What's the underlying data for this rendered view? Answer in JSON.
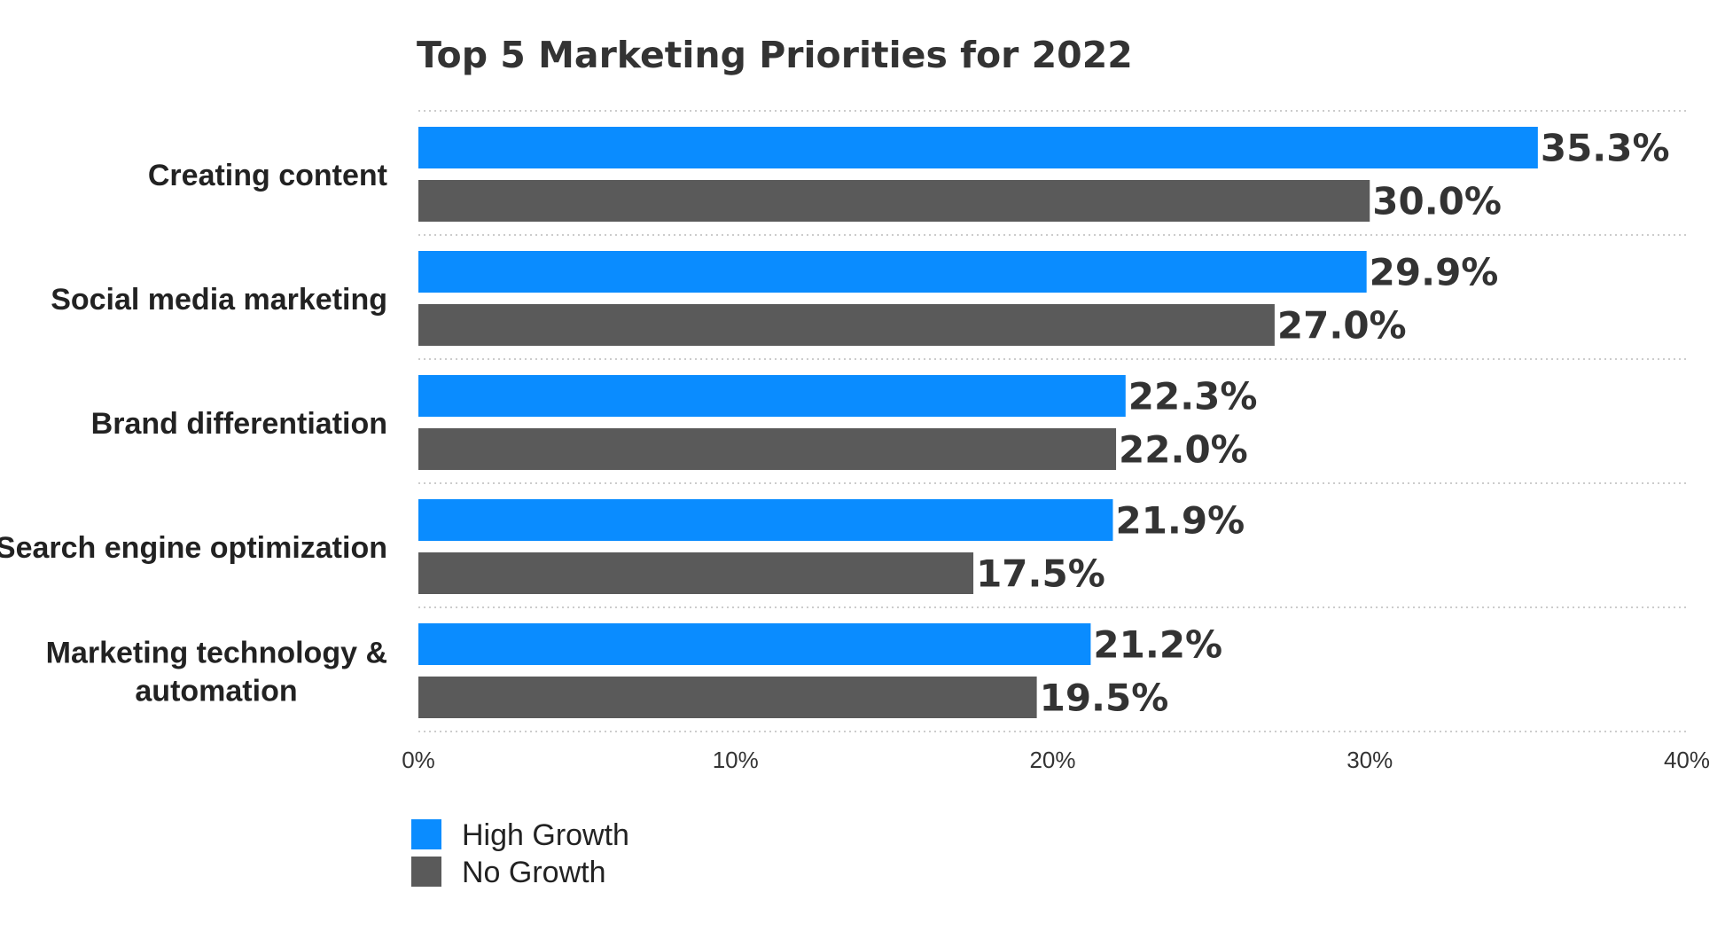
{
  "chart_data": {
    "type": "bar",
    "orientation": "horizontal",
    "title": "Top 5 Marketing Priorities for 2022",
    "categories": [
      "Creating content",
      "Social media marketing",
      "Brand differentiation",
      "Search engine optimization",
      "Marketing technology & automation"
    ],
    "category_lines": [
      [
        "Creating content"
      ],
      [
        "Social media marketing"
      ],
      [
        "Brand differentiation"
      ],
      [
        "Search engine optimization"
      ],
      [
        "Marketing technology &",
        "automation"
      ]
    ],
    "series": [
      {
        "name": "High Growth",
        "color": "#0a8cff",
        "values": [
          35.3,
          29.9,
          22.3,
          21.9,
          21.2
        ],
        "labels": [
          "35.3%",
          "29.9%",
          "22.3%",
          "21.9%",
          "21.2%"
        ]
      },
      {
        "name": "No Growth",
        "color": "#5a5a5a",
        "values": [
          30.0,
          27.0,
          22.0,
          17.5,
          19.5
        ],
        "labels": [
          "30.0%",
          "27.0%",
          "22.0%",
          "17.5%",
          "19.5%"
        ]
      }
    ],
    "xlim": [
      0,
      40
    ],
    "xticks": [
      0,
      10,
      20,
      30,
      40
    ],
    "xtick_labels": [
      "0%",
      "10%",
      "20%",
      "30%",
      "40%"
    ],
    "xlabel": "",
    "ylabel": "",
    "grid": "horizontal dotted separators",
    "legend": "bottom-left"
  }
}
